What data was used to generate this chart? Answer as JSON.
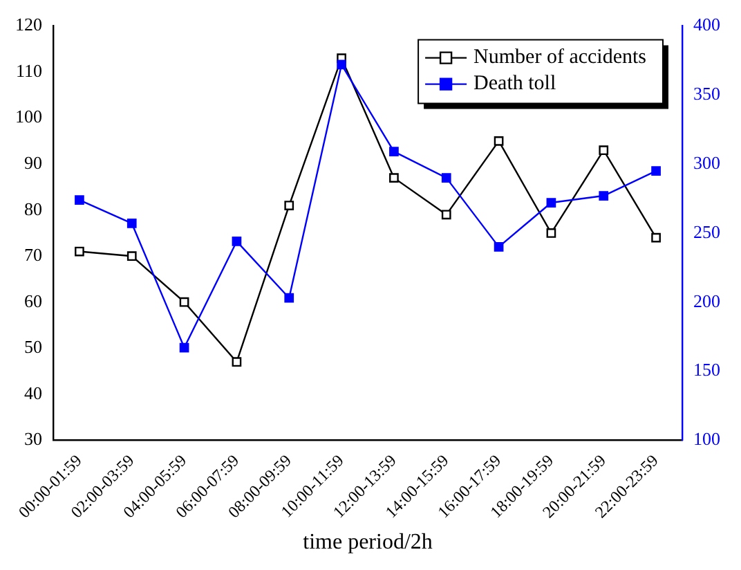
{
  "chart_data": {
    "type": "line",
    "xlabel": "time period/2h",
    "categories": [
      "00:00-01:59",
      "02:00-03:59",
      "04:00-05:59",
      "06:00-07:59",
      "08:00-09:59",
      "10:00-11:59",
      "12:00-13:59",
      "14:00-15:59",
      "16:00-17:59",
      "18:00-19:59",
      "20:00-21:59",
      "22:00-23:59"
    ],
    "series": [
      {
        "name": "Number of accidents",
        "color": "#000000",
        "marker": "square_open",
        "values": [
          71,
          70,
          60,
          47,
          81,
          113,
          87,
          79,
          95,
          75,
          93,
          74
        ]
      },
      {
        "name": "Death toll",
        "color": "#0000ff",
        "marker": "square",
        "axis": "y2",
        "values": [
          274,
          257,
          167,
          244,
          203,
          372,
          309,
          290,
          240,
          272,
          277,
          295
        ]
      }
    ],
    "ylim": [
      30,
      120
    ],
    "yticks": [
      30,
      40,
      50,
      60,
      70,
      80,
      90,
      100,
      110,
      120
    ],
    "y2lim": [
      100,
      400
    ],
    "y2ticks": [
      100,
      150,
      200,
      250,
      300,
      350,
      400
    ],
    "grid": false,
    "legend": "top right",
    "line_style": "solid"
  }
}
